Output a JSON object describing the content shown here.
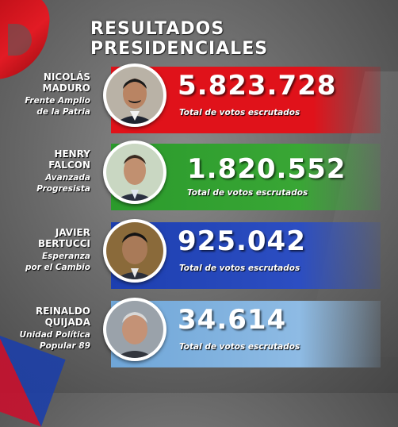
{
  "title": "RESULTADOS PRESIDENCIALES",
  "candidates": [
    {
      "first": "NICOLÁS",
      "last": "MADURO",
      "party_line1": "Frente Amplio",
      "party_line2": "de la Patria",
      "votes": "5.823.728",
      "votes_label": "Total de votos escrutados",
      "color": "#e0121a"
    },
    {
      "first": "HENRY",
      "last": "FALCON",
      "party_line1": "Avanzada",
      "party_line2": "Progresista",
      "votes": "1.820.552",
      "votes_label": "Total de votos escrutados",
      "color": "#2b9b2c"
    },
    {
      "first": "JAVIER",
      "last": "BERTUCCI",
      "party_line1": "Esperanza",
      "party_line2": "por el Cambio",
      "votes": "925.042",
      "votes_label": "Total de votos escrutados",
      "color": "#1d3fb0"
    },
    {
      "first": "REINALDO",
      "last": "QUIJADA",
      "party_line1": "Unidad Política",
      "party_line2": "Popular 89",
      "votes": "34.614",
      "votes_label": "Total de votos escrutados",
      "color": "#8ebbe4"
    }
  ]
}
